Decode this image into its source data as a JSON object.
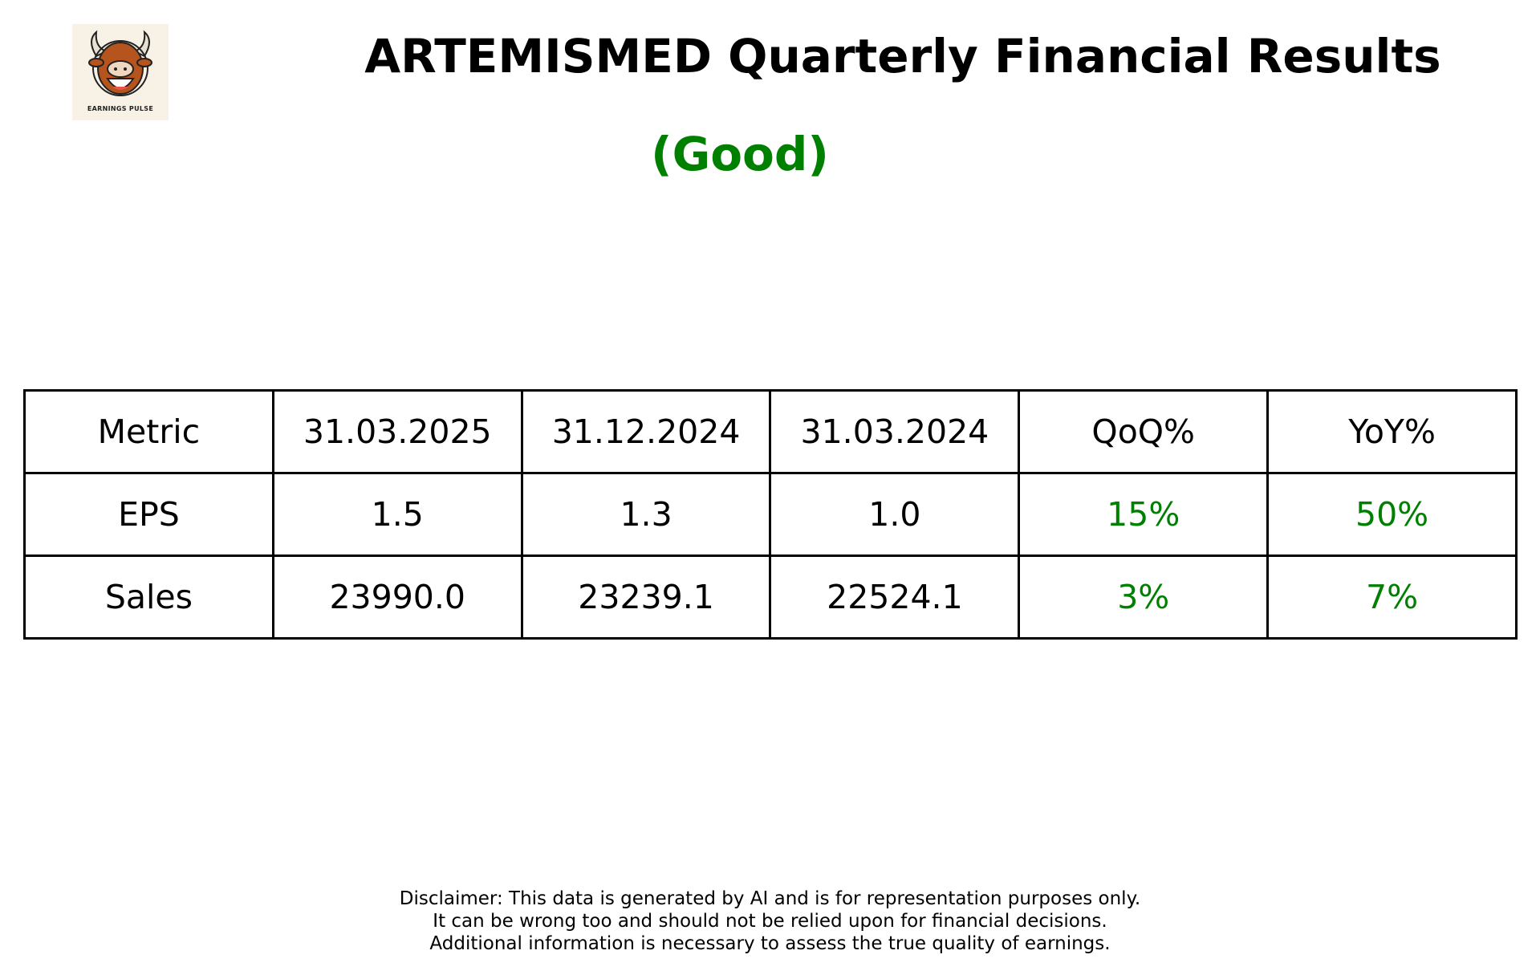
{
  "logo": {
    "text": "EARNINGS PULSE",
    "icon": "bull-mascot-icon"
  },
  "header": {
    "title": "ARTEMISMED Quarterly Financial Results",
    "rating": "(Good)"
  },
  "colors": {
    "good": "#008000",
    "text": "#000000",
    "border": "#000000"
  },
  "table": {
    "headers": [
      "Metric",
      "31.03.2025",
      "31.12.2024",
      "31.03.2024",
      "QoQ%",
      "YoY%"
    ],
    "rows": [
      [
        "EPS",
        "1.5",
        "1.3",
        "1.0",
        "15%",
        "50%"
      ],
      [
        "Sales",
        "23990.0",
        "23239.1",
        "22524.1",
        "3%",
        "7%"
      ]
    ]
  },
  "disclaimer": [
    "Disclaimer: This data is generated by AI and is for representation purposes only.",
    "It can be wrong too and should not be relied upon for financial decisions.",
    "Additional information is necessary to assess the true quality of earnings."
  ]
}
